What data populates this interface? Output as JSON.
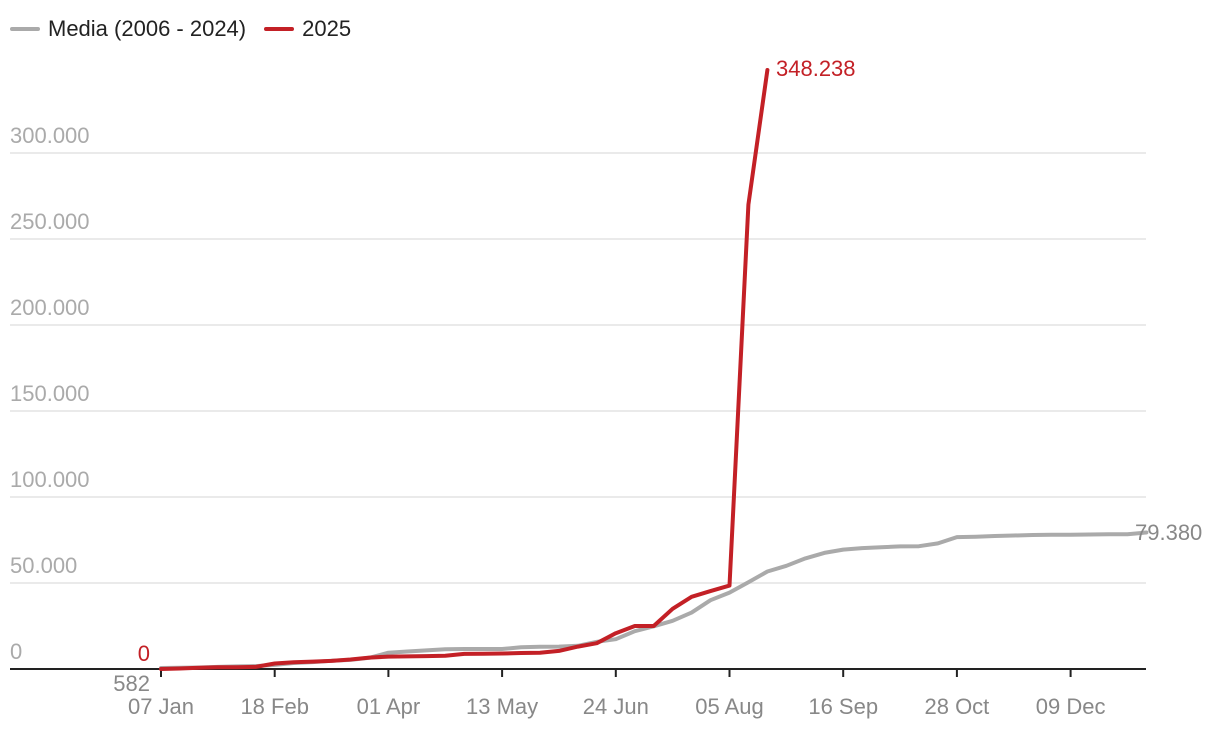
{
  "chart_data": {
    "type": "line",
    "title": "",
    "xlabel": "",
    "ylabel": "",
    "ylim": [
      0,
      350000
    ],
    "y_ticks": [
      0,
      50000,
      100000,
      150000,
      200000,
      250000,
      300000
    ],
    "y_tick_labels": [
      "0",
      "50.000",
      "100.000",
      "150.000",
      "200.000",
      "250.000",
      "300.000"
    ],
    "x_tick_labels": [
      "07 Jan",
      "18 Feb",
      "01 Apr",
      "13 May",
      "24 Jun",
      "05 Aug",
      "16 Sep",
      "28 Oct",
      "09 Dec"
    ],
    "x_tick_weeks": [
      1,
      7,
      13,
      19,
      25,
      31,
      37,
      43,
      49
    ],
    "legend_position": "top-left",
    "grid": true,
    "series": [
      {
        "name": "Media (2006 - 2024)",
        "color": "#aaaaaa",
        "x_weeks": [
          1,
          2,
          3,
          4,
          5,
          6,
          7,
          8,
          9,
          10,
          11,
          12,
          13,
          14,
          15,
          16,
          17,
          18,
          19,
          20,
          21,
          22,
          23,
          24,
          25,
          26,
          27,
          28,
          29,
          30,
          31,
          32,
          33,
          34,
          35,
          36,
          37,
          38,
          39,
          40,
          41,
          42,
          43,
          44,
          45,
          46,
          47,
          48,
          49,
          50,
          51,
          52,
          53
        ],
        "values": [
          582,
          700,
          900,
          1200,
          1500,
          1700,
          2400,
          3500,
          4000,
          4800,
          5300,
          6500,
          9500,
          10200,
          10800,
          11500,
          11600,
          11600,
          11600,
          12600,
          12900,
          13000,
          13500,
          15800,
          17300,
          22000,
          24800,
          28000,
          32800,
          40000,
          44400,
          50400,
          56700,
          60000,
          64300,
          67500,
          69400,
          70300,
          70800,
          71300,
          71400,
          73000,
          76700,
          76900,
          77300,
          77600,
          77900,
          78000,
          78100,
          78200,
          78300,
          78400,
          79380
        ]
      },
      {
        "name": "2025",
        "color": "#c32026",
        "x_weeks": [
          1,
          2,
          3,
          4,
          5,
          6,
          7,
          8,
          9,
          10,
          11,
          12,
          13,
          14,
          15,
          16,
          17,
          18,
          19,
          20,
          21,
          22,
          23,
          24,
          25,
          26,
          27,
          28,
          29,
          30,
          31,
          32,
          33
        ],
        "values": [
          0,
          300,
          700,
          1000,
          1000,
          1200,
          3200,
          3900,
          4300,
          4700,
          5500,
          6600,
          7200,
          7300,
          7500,
          7700,
          8800,
          8900,
          9000,
          9300,
          9500,
          10500,
          13000,
          15000,
          20800,
          25000,
          25000,
          35000,
          42000,
          45300,
          48500,
          270000,
          348238
        ]
      }
    ],
    "annotations": {
      "series_2025_end": "348.238",
      "media_end": "79.380",
      "series_2025_start": "0",
      "media_start": "582"
    }
  }
}
